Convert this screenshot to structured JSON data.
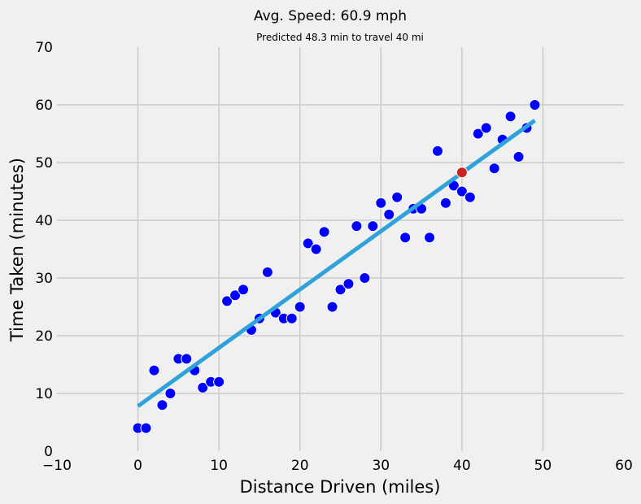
{
  "chart_data": {
    "type": "scatter",
    "title": "Avg. Speed:  60.9 mph",
    "subtitle": "Predicted 48.3 min to travel 40 mi",
    "xlabel": "Distance Driven (miles)",
    "ylabel": "Time Taken (minutes)",
    "xlim": [
      -10,
      60
    ],
    "ylim": [
      0,
      70
    ],
    "xticks": [
      -10,
      0,
      10,
      20,
      30,
      40,
      50,
      60
    ],
    "yticks": [
      0,
      10,
      20,
      30,
      40,
      50,
      60,
      70
    ],
    "xtick_labels": [
      "−10",
      "0",
      "10",
      "20",
      "30",
      "40",
      "50",
      "60"
    ],
    "ytick_labels": [
      "0",
      "10",
      "20",
      "30",
      "40",
      "50",
      "60",
      "70"
    ],
    "grid": true,
    "series": [
      {
        "color": "#0000ff",
        "x": [
          0,
          1,
          2,
          3,
          4,
          5,
          6,
          7,
          8,
          9,
          10,
          11,
          12,
          13,
          14,
          15,
          16,
          17,
          18,
          19,
          20,
          21,
          22,
          23,
          24,
          25,
          26,
          27,
          28,
          29,
          30,
          31,
          32,
          33,
          34,
          35,
          36,
          37,
          38,
          39,
          40,
          41,
          42,
          43,
          44,
          45,
          46,
          47,
          48,
          49
        ],
        "y": [
          4,
          4,
          14,
          8,
          10,
          16,
          16,
          14,
          11,
          12,
          12,
          26,
          27,
          28,
          21,
          23,
          31,
          24,
          23,
          23,
          25,
          36,
          35,
          38,
          25,
          28,
          29,
          39,
          30,
          39,
          43,
          41,
          44,
          37,
          42,
          42,
          37,
          52,
          43,
          46,
          45,
          44,
          55,
          56,
          49,
          54,
          58,
          51,
          56,
          60
        ]
      }
    ],
    "fit_line": {
      "color": "#30a2da",
      "x": [
        0,
        49
      ],
      "y": [
        7.8,
        57.3
      ]
    },
    "prediction_point": {
      "color": "#cc2222",
      "x": 40,
      "y": 48.3
    }
  }
}
